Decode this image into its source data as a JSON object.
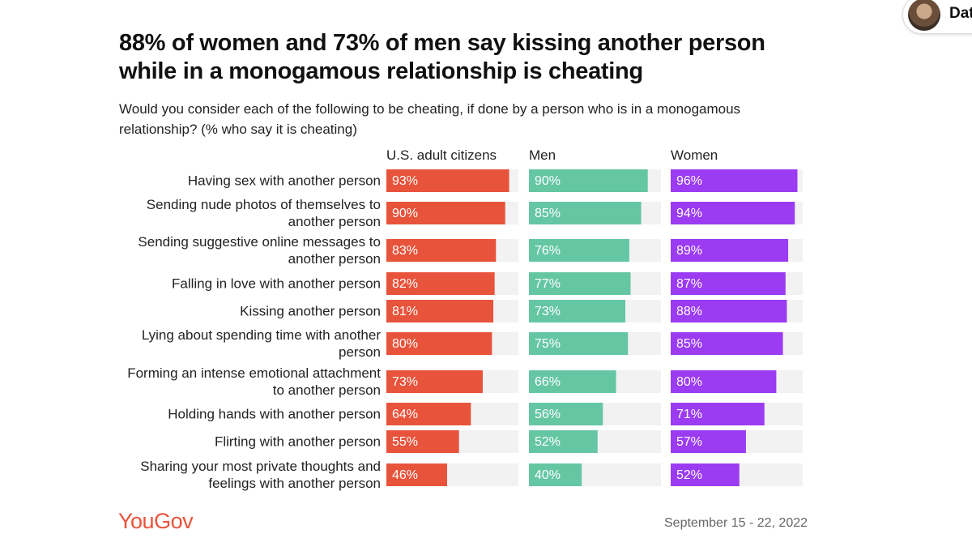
{
  "page": {
    "badge": "Dat"
  },
  "chart_data": {
    "type": "bar",
    "orientation": "horizontal",
    "title": "88% of women and 73% of men say kissing another person while in a monogamous relationship is cheating",
    "subtitle": "Would you consider each of the following to be cheating, if done by a person who is in a monogamous relationship? (% who say it is cheating)",
    "categories": [
      "Having sex with another person",
      "Sending nude photos of themselves to another person",
      "Sending suggestive online messages to another person",
      "Falling in love with another person",
      "Kissing another person",
      "Lying about spending time with another person",
      "Forming an intense emotional attachment to another person",
      "Holding hands with another person",
      "Flirting with another person",
      "Sharing your most private thoughts and feelings with another person"
    ],
    "series": [
      {
        "name": "U.S. adult citizens",
        "color": "#e8533b",
        "values": [
          93,
          90,
          83,
          82,
          81,
          80,
          73,
          64,
          55,
          46
        ],
        "value_labels": [
          "93%",
          "90%",
          "83%",
          "82%",
          "81%",
          "80%",
          "73%",
          "64%",
          "55%",
          "46%"
        ]
      },
      {
        "name": "Men",
        "color": "#65c6a4",
        "values": [
          90,
          85,
          76,
          77,
          73,
          75,
          66,
          56,
          52,
          40
        ],
        "value_labels": [
          "90%",
          "85%",
          "76%",
          "77%",
          "73%",
          "75%",
          "66%",
          "56%",
          "52%",
          "40%"
        ]
      },
      {
        "name": "Women",
        "color": "#9b3bf2",
        "values": [
          96,
          94,
          89,
          87,
          88,
          85,
          80,
          71,
          57,
          52
        ],
        "value_labels": [
          "96%",
          "94%",
          "89%",
          "87%",
          "88%",
          "85%",
          "80%",
          "71%",
          "57%",
          "52%"
        ]
      }
    ],
    "xlim": [
      0,
      100
    ],
    "track_color": "#f2f2f2",
    "source": "YouGov",
    "date": "September 15 - 22, 2022"
  }
}
